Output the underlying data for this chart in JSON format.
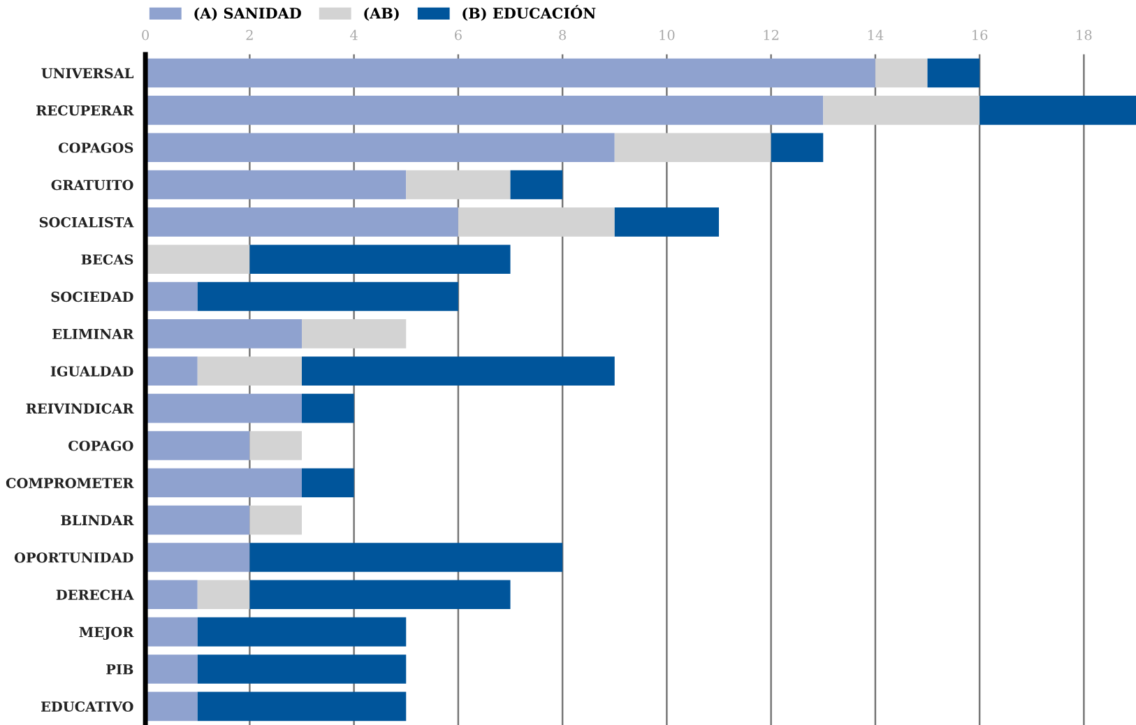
{
  "chart_data": {
    "type": "bar",
    "orientation": "horizontal",
    "stacked": true,
    "categories": [
      "UNIVERSAL",
      "RECUPERAR",
      "COPAGOS",
      "GRATUITO",
      "SOCIALISTA",
      "BECAS",
      "SOCIEDAD",
      "ELIMINAR",
      "IGUALDAD",
      "REIVINDICAR",
      "COPAGO",
      "COMPROMETER",
      "BLINDAR",
      "OPORTUNIDAD",
      "DERECHA",
      "MEJOR",
      "PIB",
      "EDUCATIVO"
    ],
    "series": [
      {
        "name": "(A) SANIDAD",
        "color": "#8fa2cf",
        "values": [
          14,
          13,
          9,
          5,
          6,
          0,
          1,
          3,
          1,
          3,
          2,
          3,
          2,
          2,
          1,
          1,
          1,
          1
        ]
      },
      {
        "name": "(AB)",
        "color": "#d3d3d3",
        "values": [
          1,
          3,
          3,
          2,
          3,
          2,
          0,
          2,
          2,
          0,
          1,
          0,
          1,
          0,
          1,
          0,
          0,
          0
        ]
      },
      {
        "name": "(B) EDUCACIÓN",
        "color": "#00559b",
        "values": [
          1,
          3,
          1,
          1,
          2,
          5,
          5,
          0,
          6,
          1,
          0,
          1,
          0,
          6,
          5,
          4,
          4,
          4
        ]
      }
    ],
    "xlim": [
      0,
      19
    ],
    "xticks": [
      0,
      2,
      4,
      6,
      8,
      10,
      12,
      14,
      16,
      18
    ],
    "grid": "x",
    "legend": "top left"
  }
}
